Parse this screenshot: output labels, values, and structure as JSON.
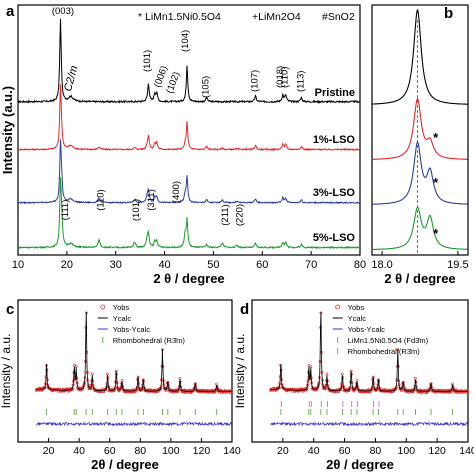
{
  "chart_data": [
    {
      "panel": "a",
      "type": "line",
      "xlabel": "2 θ / degree",
      "ylabel": "Intensity (a.u.)",
      "xlim": [
        10,
        80
      ],
      "xticks": [
        "10",
        "20",
        "30",
        "40",
        "50",
        "60",
        "70",
        "80"
      ],
      "legend_text": {
        "star_line": "* LiMn1.5Ni0.5O4",
        "plus_line": "+LiMn2O4",
        "hash_line": "#SnO2"
      },
      "annotations": {
        "phase": "C2/m",
        "hkl_layered": [
          "(003)",
          "(101)",
          "(006)",
          "(102)",
          "(104)",
          "(105)",
          "(107)",
          "(018)",
          "(110)",
          "(113)"
        ],
        "hkl_spinel_sno2": [
          "(111)",
          "(110)",
          "(101)",
          "(311)",
          "(400)",
          "(211)",
          "(220)"
        ]
      },
      "peaks_2theta": {
        "layered": [
          18.7,
          20.8,
          36.7,
          38.0,
          38.4,
          44.6,
          48.6,
          58.6,
          64.2,
          64.8,
          68.0
        ],
        "spinel": [
          18.9,
          36.4,
          44.2
        ],
        "sno2": [
          26.6,
          33.9,
          51.8,
          54.8
        ]
      },
      "series": [
        {
          "name": "Pristine",
          "color": "#000000"
        },
        {
          "name": "1%-LSO",
          "color": "#e8262a"
        },
        {
          "name": "3%-LSO",
          "color": "#2b3f9f"
        },
        {
          "name": "5%-LSO",
          "color": "#1a9a2a"
        }
      ]
    },
    {
      "panel": "b",
      "type": "line",
      "xlabel": "2 θ / degree",
      "xlim": [
        17.8,
        19.7
      ],
      "xticks": [
        "18.0",
        "19.5"
      ],
      "peak_center_2theta": 18.7,
      "spinel_shoulder_2theta": 18.95,
      "marker": "*"
    },
    {
      "panel": "c",
      "type": "scatter",
      "xlabel": "2θ / degree",
      "ylabel": "Intensity / a.u.",
      "xlim": [
        0,
        140
      ],
      "xticks": [
        "20",
        "40",
        "60",
        "80",
        "100",
        "120",
        "140"
      ],
      "legend": [
        "Yobs",
        "Ycalc",
        "Yobs-Ycalc",
        "Rhombohedral (R3̄m)"
      ],
      "peaks_2theta": [
        18.7,
        36.8,
        38.1,
        44.6,
        48.6,
        58.6,
        64.3,
        68.0,
        78.5,
        82.0,
        94.5,
        98.0,
        106.0,
        116.0,
        130.0
      ]
    },
    {
      "panel": "d",
      "type": "scatter",
      "xlabel": "2θ / degree",
      "ylabel": "Intensity / a.u.",
      "xlim": [
        0,
        140
      ],
      "xticks": [
        "20",
        "40",
        "60",
        "80",
        "100",
        "120",
        "140"
      ],
      "legend": [
        "Yobs",
        "Ycalc",
        "Yobs-Ycalc",
        "LiMn1.5Ni0.5O4 (Fd3̄m)",
        "Rhombohedral (R3̄m)"
      ],
      "peaks_2theta": [
        18.7,
        36.8,
        38.1,
        44.6,
        48.6,
        58.6,
        64.3,
        68.0,
        78.5,
        82.0,
        94.5,
        98.0,
        106.0,
        116.0,
        130.0
      ]
    }
  ],
  "colors": {
    "pristine": "#000000",
    "lso1": "#e8262a",
    "lso3": "#2b3f9f",
    "lso5": "#1a9a2a",
    "obs": "#e03030",
    "calc": "#000000",
    "diff": "#3333cc",
    "tick_r3m": "#6aa84f",
    "tick_fd3m": "#cc66cc"
  }
}
